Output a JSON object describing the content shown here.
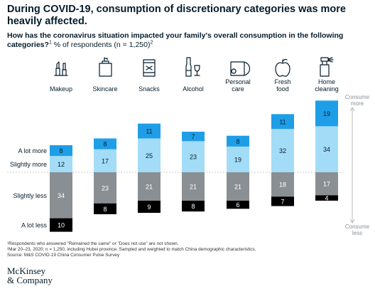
{
  "title": "During COVID-19, consumption of discretionary categories was more heavily affected.",
  "subtitle_bold": "How has the coronavirus situation impacted your family's overall consumption in the following categories?",
  "subtitle_sup": "1",
  "subtitle_rest": " % of respondents (n = 1,250)",
  "subtitle_sup2": "2",
  "footnotes": [
    "¹Respondents who answered \"Remained the same\" or \"Does not use\" are not shown.",
    "²Mar 20–23, 2020; n = 1,250, including Hubei province. Sampled and weighted to match China demographic characteristics.",
    "Source: M&S COVID-19 China Consumer Pulse Survey"
  ],
  "logo": [
    "McKinsey",
    "& Company"
  ],
  "colors": {
    "a_lot_more": "#1f9ee8",
    "slightly_more": "#a3dcf7",
    "slightly_less": "#8a8f94",
    "a_lot_less": "#000000",
    "baseline": "#bbbbbb",
    "arrow": "#b8b8b8"
  },
  "icons": [
    "lipstick-icon",
    "lotion-bottle-icon",
    "snack-bag-icon",
    "wine-bottle-icon",
    "toilet-paper-icon",
    "apple-icon",
    "spray-bottle-icon"
  ],
  "chart_data": {
    "type": "bar",
    "stacked": "diverging",
    "categories": [
      "Makeup",
      "Skincare",
      "Snacks",
      "Alcohol",
      "Personal care",
      "Fresh food",
      "Home cleaning"
    ],
    "series": [
      {
        "name": "A lot more",
        "values": [
          8,
          8,
          11,
          7,
          8,
          11,
          19
        ]
      },
      {
        "name": "Slightly more",
        "values": [
          12,
          17,
          25,
          23,
          19,
          32,
          34
        ]
      },
      {
        "name": "Slightly less",
        "values": [
          34,
          23,
          21,
          21,
          21,
          18,
          17
        ]
      },
      {
        "name": "A lot less",
        "values": [
          10,
          8,
          9,
          8,
          6,
          7,
          4
        ]
      }
    ],
    "axis_annotations": {
      "top": "Consume more",
      "bottom": "Consume less"
    }
  }
}
